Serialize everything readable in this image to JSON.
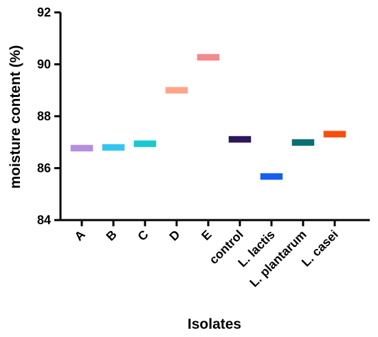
{
  "chart_data": {
    "type": "scatter",
    "title": "",
    "xlabel": "Isolates",
    "ylabel": "moisture content (%)",
    "ylim": [
      84,
      92
    ],
    "yticks": [
      84,
      86,
      88,
      90,
      92
    ],
    "grid": false,
    "legend": "none",
    "categories": [
      "A",
      "B",
      "C",
      "D",
      "E",
      "control",
      "L. lactis",
      "L. plantarum",
      "L. casei"
    ],
    "values": [
      86.77,
      86.8,
      86.94,
      89.0,
      90.27,
      87.11,
      85.68,
      86.99,
      87.31
    ],
    "colors": [
      "#b48ee0",
      "#33c5f0",
      "#16c9d4",
      "#ffa58a",
      "#f28a8f",
      "#2e1658",
      "#1560f2",
      "#0b6f76",
      "#f74e10"
    ]
  }
}
